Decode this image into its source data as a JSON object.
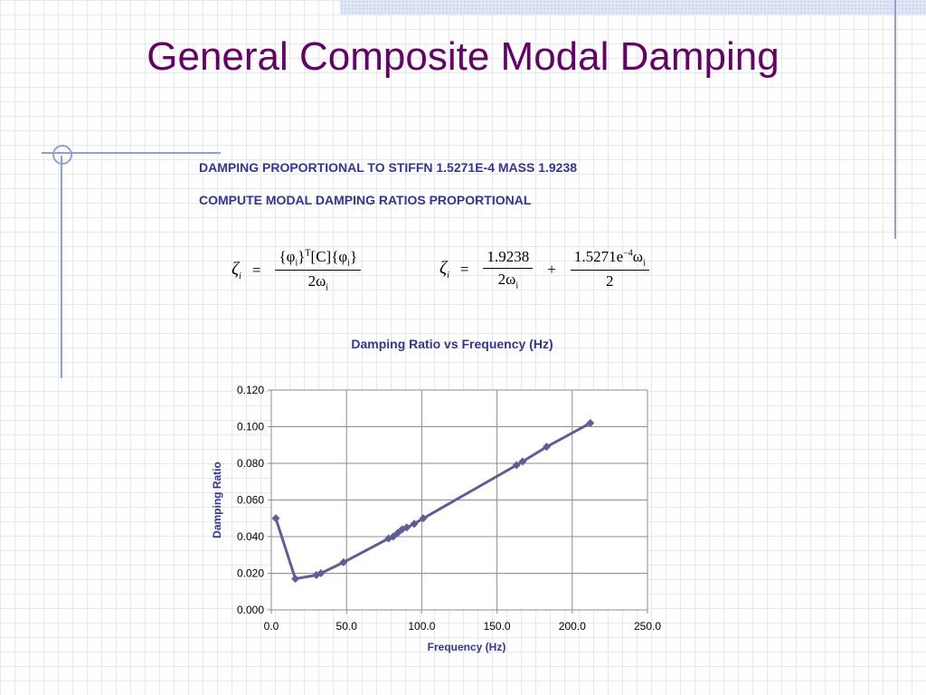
{
  "title": "General Composite Modal Damping",
  "lines": [
    "DAMPING PROPORTIONAL TO STIFFN  1.5271E-4  MASS 1.9238",
    "COMPUTE MODAL DAMPING RATIOS PROPORTIONAL"
  ],
  "equation1": {
    "lhs": "ζ",
    "lhs_sub": "i",
    "eq": "=",
    "num": "{φ",
    "num_sub": "i",
    "num_sup": "T",
    "num_mid": "}",
    "num_c": "[C]{φ",
    "num_sub2": "i",
    "num_end": "}",
    "den": "2ω",
    "den_sub": "i"
  },
  "equation2": {
    "lhs": "ζ",
    "lhs_sub": "i",
    "eq": "=",
    "frac1_num": "1.9238",
    "frac1_den": "2ω",
    "frac1_den_sub": "i",
    "plus": "+",
    "frac2_num": "1.5271e",
    "frac2_sup": "−4",
    "frac2_num_w": "ω",
    "frac2_num_sub": "i",
    "frac2_den": "2"
  },
  "chart_data": {
    "type": "scatter",
    "mode": "lines+markers",
    "title": "Damping Ratio vs Frequency (Hz)",
    "xlabel": "Frequency (Hz)",
    "ylabel": "Damping Ratio",
    "xlim": [
      0,
      250
    ],
    "ylim": [
      0,
      0.12
    ],
    "xticks": [
      "0.0",
      "50.0",
      "100.0",
      "150.0",
      "200.0",
      "250.0"
    ],
    "yticks": [
      "0.000",
      "0.020",
      "0.040",
      "0.060",
      "0.080",
      "0.100",
      "0.120"
    ],
    "grid": true,
    "legend": false,
    "series": [
      {
        "color": "#5c5f96",
        "x": [
          3,
          16,
          30,
          33,
          48,
          78,
          81,
          84,
          87,
          90,
          95,
          101,
          163,
          167,
          183,
          212
        ],
        "y": [
          0.05,
          0.017,
          0.019,
          0.02,
          0.026,
          0.039,
          0.04,
          0.042,
          0.044,
          0.045,
          0.047,
          0.05,
          0.079,
          0.081,
          0.089,
          0.102
        ]
      }
    ]
  }
}
